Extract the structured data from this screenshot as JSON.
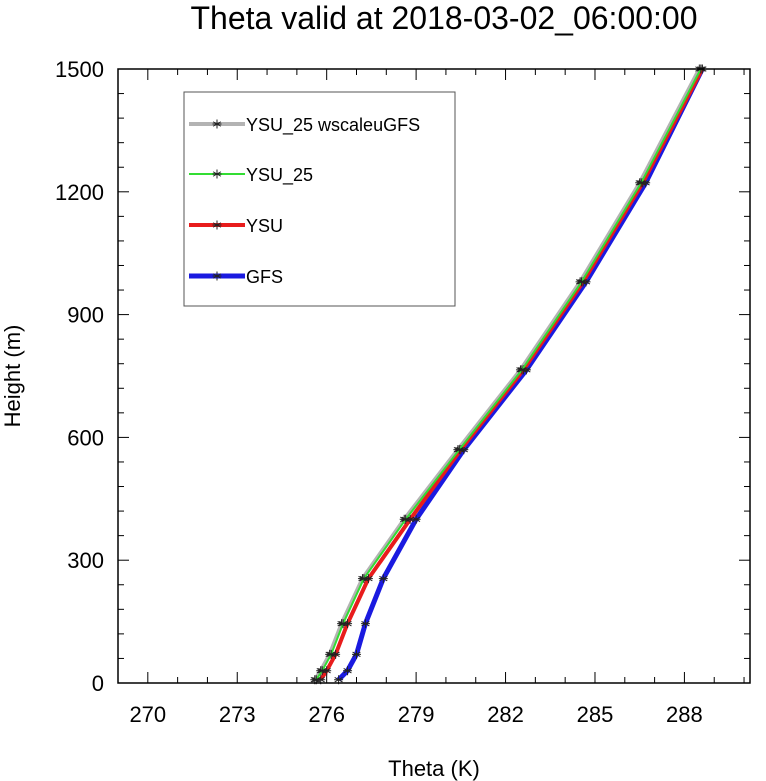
{
  "chart_data": {
    "type": "line",
    "title": "Theta valid at 2018-03-02_06:00:00",
    "xlabel": "Theta (K)",
    "ylabel": "Height (m)",
    "xlim": [
      269,
      290.2
    ],
    "ylim": [
      0,
      1500
    ],
    "xticks": [
      270,
      273,
      276,
      279,
      282,
      285,
      288
    ],
    "yticks": [
      0,
      300,
      600,
      900,
      1200,
      1500
    ],
    "legend_position": "top-left",
    "series": [
      {
        "name": "YSU_25 wscaleuGFS",
        "color": "#b3b3b3",
        "line_width": 4,
        "x": [
          275.6,
          275.8,
          276.1,
          276.5,
          277.2,
          278.6,
          280.4,
          282.5,
          284.5,
          286.5,
          288.5
        ],
        "y": [
          8,
          30,
          70,
          145,
          255,
          400,
          570,
          765,
          980,
          1222,
          1500
        ]
      },
      {
        "name": "YSU_25",
        "color": "#33dd33",
        "line_width": 2,
        "x": [
          275.65,
          275.85,
          276.15,
          276.55,
          277.25,
          278.65,
          280.45,
          282.55,
          284.55,
          286.55,
          288.55
        ],
        "y": [
          8,
          30,
          70,
          145,
          255,
          400,
          570,
          765,
          980,
          1222,
          1500
        ]
      },
      {
        "name": "YSU",
        "color": "#e81c1c",
        "line_width": 4,
        "x": [
          275.8,
          276.0,
          276.3,
          276.7,
          277.4,
          278.8,
          280.5,
          282.6,
          284.6,
          286.6,
          288.6
        ],
        "y": [
          8,
          30,
          70,
          145,
          255,
          400,
          570,
          765,
          980,
          1222,
          1500
        ]
      },
      {
        "name": "GFS",
        "color": "#1a1ae0",
        "line_width": 5,
        "x": [
          276.4,
          276.7,
          277.0,
          277.3,
          277.9,
          279.0,
          280.6,
          282.7,
          284.7,
          286.7,
          288.6
        ],
        "y": [
          8,
          30,
          70,
          145,
          255,
          400,
          570,
          765,
          980,
          1222,
          1500
        ]
      }
    ]
  }
}
